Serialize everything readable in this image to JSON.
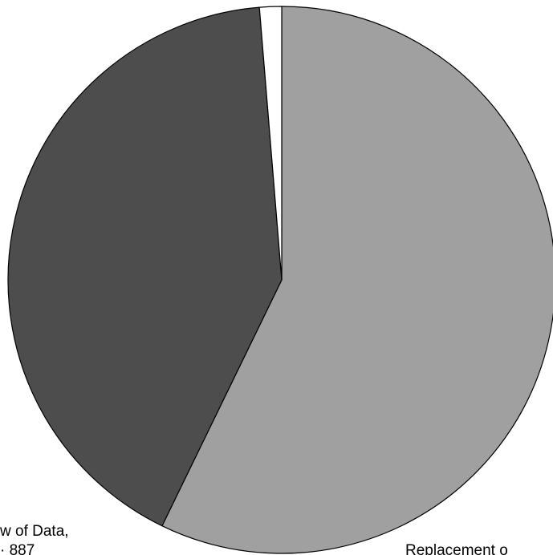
{
  "chart_data": {
    "type": "pie",
    "slices": [
      {
        "label": "Replacement o",
        "value": 57.2,
        "color": "#a0a0a0"
      },
      {
        "label": "w of Data,",
        "value": 41.5,
        "color": "#4d4d4d",
        "label_line2": "· 887"
      },
      {
        "label": "",
        "value": 1.3,
        "color": "#ffffff"
      }
    ],
    "start_angle_deg": 0,
    "direction": "clockwise",
    "legend": "none"
  }
}
